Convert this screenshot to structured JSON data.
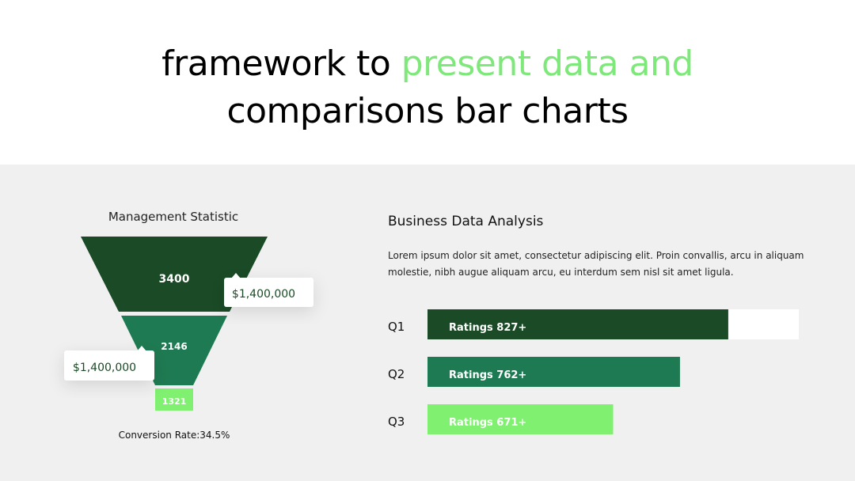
{
  "header": {
    "title_part1": "framework to ",
    "title_highlight": "present data and",
    "title_line2": "comparisons bar charts"
  },
  "funnel": {
    "title": "Management Statistic",
    "levels": [
      "3400",
      "2146",
      "1321"
    ],
    "callouts": [
      "$1,400,000",
      "$1,400,000"
    ],
    "footer": "Conversion Rate:34.5%"
  },
  "analysis": {
    "title": "Business Data Analysis",
    "text_lines": [
      "Lorem ipsum dolor sit amet, consectetur adipiscing elit. Proin convallis, arcu in aliquam",
      "molestie, nibh augue aliquam arcu, eu interdum sem nisl sit amet ligula."
    ],
    "bars": [
      {
        "label": "Q1",
        "text": "Ratings 827+",
        "fill": 81,
        "color": "#1a4a26"
      },
      {
        "label": "Q2",
        "text": "Ratings 762+",
        "fill": 68,
        "color": "#1e7a52"
      },
      {
        "label": "Q3",
        "text": "Ratings 671+",
        "fill": 50,
        "color": "#7ff070"
      }
    ]
  }
}
